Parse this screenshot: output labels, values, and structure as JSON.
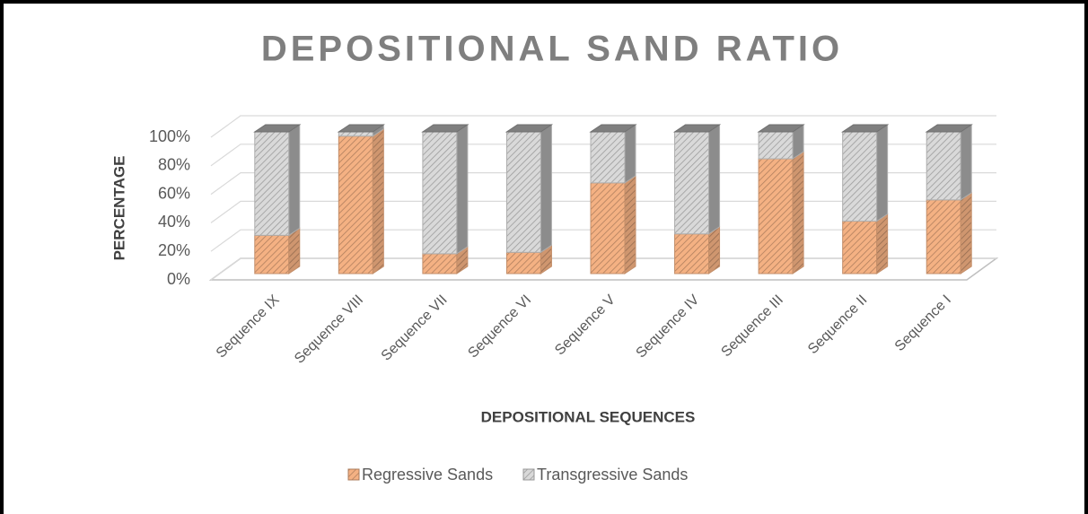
{
  "chart_data": {
    "type": "bar3d_stacked",
    "title": "DEPOSITIONAL SAND RATIO",
    "x_label": "DEPOSITIONAL SEQUENCES",
    "y_label": "PERCENTAGE",
    "categories": [
      "Sequence IX",
      "Sequence VIII",
      "Sequence VII",
      "Sequence VI",
      "Sequence V",
      "Sequence IV",
      "Sequence III",
      "Sequence II",
      "Sequence I"
    ],
    "series": [
      {
        "name": "Regressive Sands",
        "color": "#f4b183",
        "values": [
          27,
          97,
          14,
          15,
          64,
          28,
          81,
          37,
          52
        ]
      },
      {
        "name": "Transgressive Sands",
        "color": "#d9d9d9",
        "values": [
          73,
          3,
          86,
          85,
          36,
          72,
          19,
          63,
          48
        ]
      }
    ],
    "ylim": [
      0,
      100
    ],
    "yticks": [
      {
        "value": 0,
        "label": "0%"
      },
      {
        "value": 20,
        "label": "20%"
      },
      {
        "value": 40,
        "label": "40%"
      },
      {
        "value": 60,
        "label": "60%"
      },
      {
        "value": 80,
        "label": "80%"
      },
      {
        "value": 100,
        "label": "100%"
      }
    ],
    "grid": true,
    "legend": "bottom"
  }
}
